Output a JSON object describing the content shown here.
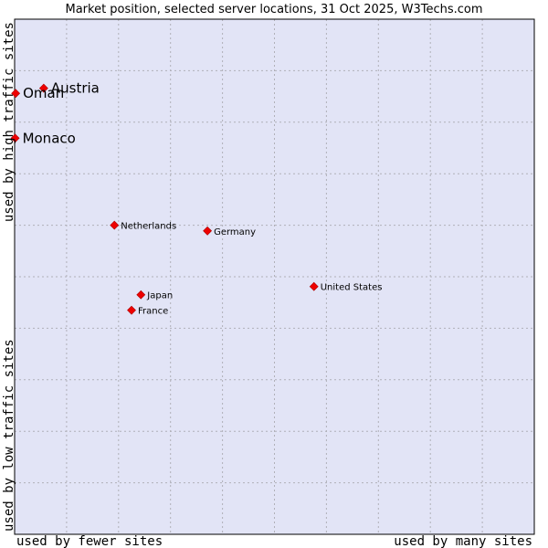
{
  "chart_data": {
    "type": "scatter",
    "title": "Market position, selected server locations, 31 Oct 2025, W3Techs.com",
    "xlabel_left": "used by fewer sites",
    "xlabel_right": "used by many sites",
    "ylabel_bottom": "used by low traffic sites",
    "ylabel_top": "used by high traffic sites",
    "xlim": [
      0,
      100
    ],
    "ylim": [
      0,
      100
    ],
    "grid": true,
    "points": [
      {
        "label": "Austria",
        "x": 5.6,
        "y": 86.6,
        "emphasis": true
      },
      {
        "label": "Oman",
        "x": 0.2,
        "y": 85.6,
        "emphasis": true
      },
      {
        "label": "Monaco",
        "x": 0.1,
        "y": 76.9,
        "emphasis": true
      },
      {
        "label": "Netherlands",
        "x": 19.2,
        "y": 60.0,
        "emphasis": false
      },
      {
        "label": "Germany",
        "x": 37.1,
        "y": 58.9,
        "emphasis": false
      },
      {
        "label": "United States",
        "x": 57.6,
        "y": 48.1,
        "emphasis": false
      },
      {
        "label": "Japan",
        "x": 24.3,
        "y": 46.5,
        "emphasis": false
      },
      {
        "label": "France",
        "x": 22.5,
        "y": 43.5,
        "emphasis": false
      }
    ]
  },
  "colors": {
    "plot_background": "#e2e4f6",
    "grid": "#b0b0b8",
    "point": "#ee0000",
    "border": "#000000"
  }
}
